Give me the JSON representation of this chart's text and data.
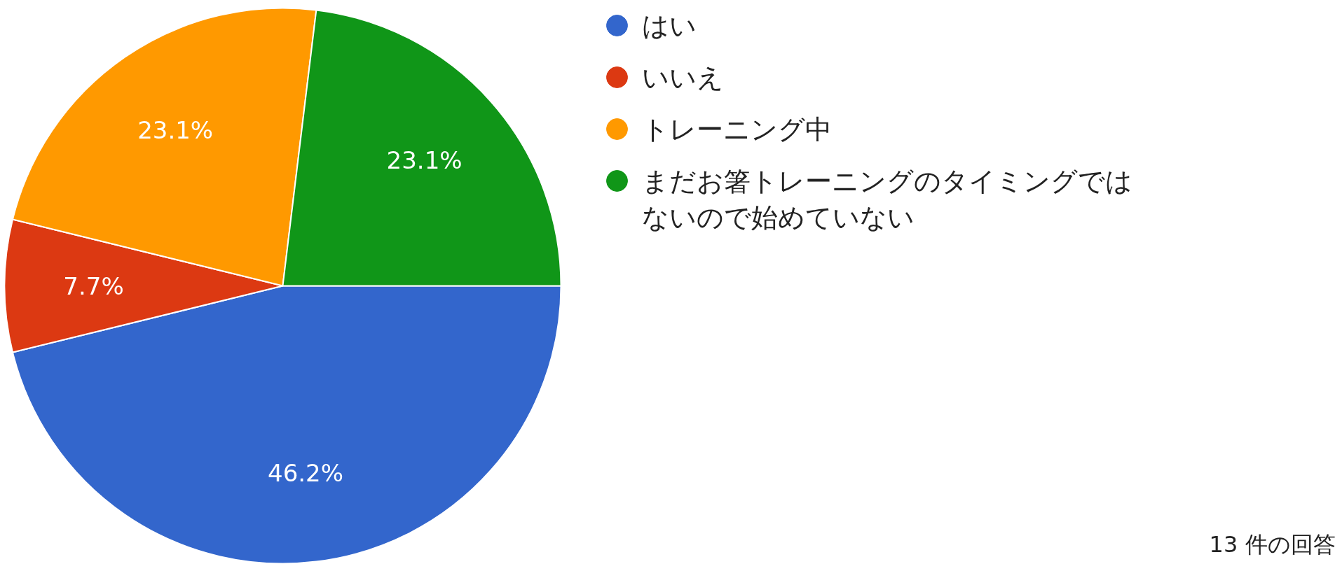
{
  "chart_data": {
    "type": "pie",
    "categories": [
      "はい",
      "いいえ",
      "トレーニング中",
      "まだお箸トレーニングのタイミングではないので始めていない"
    ],
    "values": [
      46.2,
      7.7,
      23.1,
      23.1
    ],
    "colors": [
      "#3366cc",
      "#dc3912",
      "#ff9900",
      "#109618"
    ],
    "value_labels": [
      "46.2%",
      "7.7%",
      "23.1%",
      "23.1%"
    ],
    "legend": "right",
    "annotations": [
      "13 件の回答"
    ]
  }
}
